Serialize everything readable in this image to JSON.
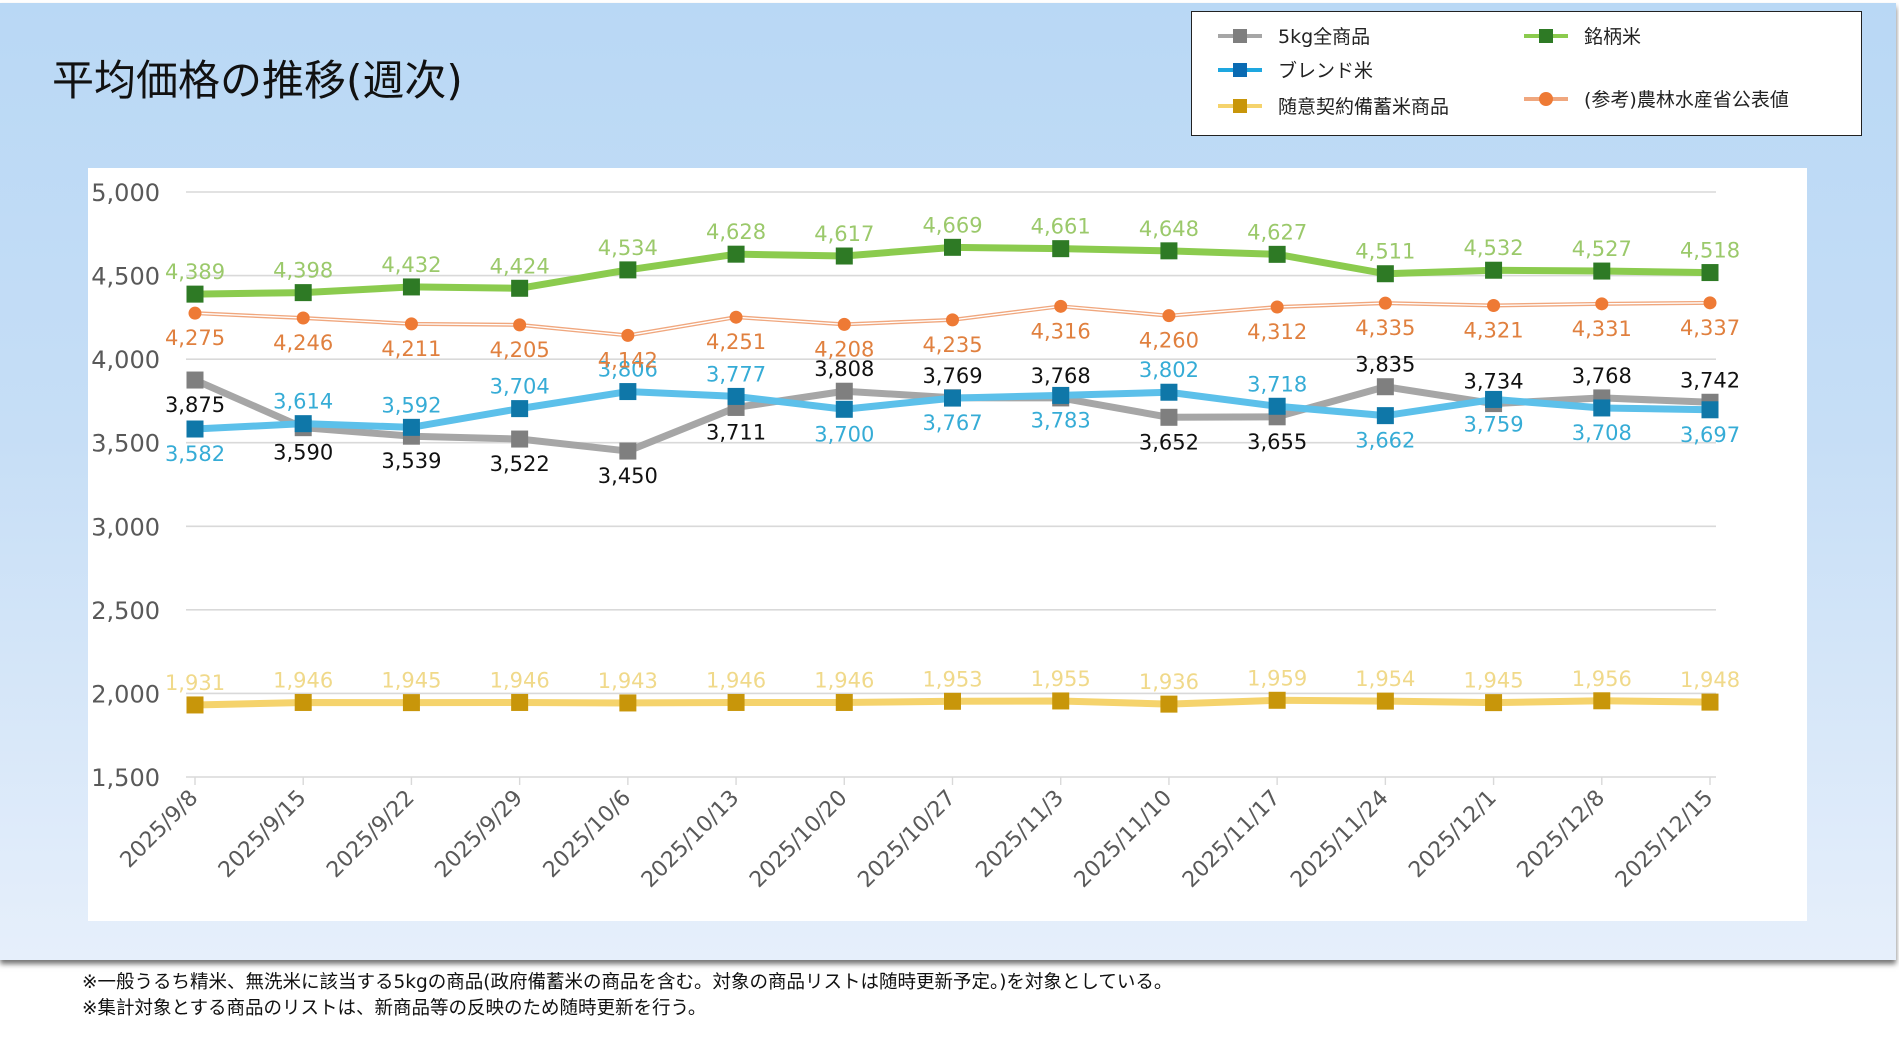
{
  "chart_data": {
    "type": "line",
    "title": "平均価格の推移(週次)",
    "xlabel": "",
    "ylabel": "",
    "ylim": [
      1500,
      5000
    ],
    "yticks": [
      1500,
      2000,
      2500,
      3000,
      3500,
      4000,
      4500,
      5000
    ],
    "ytick_labels": [
      "1,500",
      "2,000",
      "2,500",
      "3,000",
      "3,500",
      "4,000",
      "4,500",
      "5,000"
    ],
    "grid": true,
    "legend_position": "top-right",
    "categories": [
      "2025/9/8",
      "2025/9/15",
      "2025/9/22",
      "2025/9/29",
      "2025/10/6",
      "2025/10/13",
      "2025/10/20",
      "2025/10/27",
      "2025/11/3",
      "2025/11/10",
      "2025/11/17",
      "2025/11/24",
      "2025/12/1",
      "2025/12/8",
      "2025/12/15"
    ],
    "series": [
      {
        "name": "5kg全商品",
        "line_color": "#a6a6a6",
        "marker_color": "#7f7f7f",
        "label_color": "#111111",
        "marker": "square",
        "values": [
          3875,
          3590,
          3539,
          3522,
          3450,
          3711,
          3808,
          3769,
          3768,
          3652,
          3655,
          3835,
          3734,
          3768,
          3742
        ],
        "label_pos": [
          "below",
          "below",
          "below",
          "below",
          "below",
          "below",
          "above",
          "above",
          "above",
          "below",
          "below",
          "above",
          "above",
          "above",
          "above"
        ]
      },
      {
        "name": "銘柄米",
        "line_color": "#8bcb4e",
        "marker_color": "#2e7a25",
        "label_color": "#9bc96b",
        "marker": "square",
        "values": [
          4389,
          4398,
          4432,
          4424,
          4534,
          4628,
          4617,
          4669,
          4661,
          4648,
          4627,
          4511,
          4532,
          4527,
          4518
        ],
        "label_pos": [
          "above",
          "above",
          "above",
          "above",
          "above",
          "above",
          "above",
          "above",
          "above",
          "above",
          "above",
          "above",
          "above",
          "above",
          "above"
        ]
      },
      {
        "name": "ブレンド米",
        "line_color": "#5cc0ea",
        "marker_color": "#0f77a8",
        "label_color": "#36acd6",
        "marker": "square",
        "values": [
          3582,
          3614,
          3592,
          3704,
          3806,
          3777,
          3700,
          3767,
          3783,
          3802,
          3718,
          3662,
          3759,
          3708,
          3697
        ],
        "label_pos": [
          "below",
          "above",
          "above",
          "above",
          "above",
          "above",
          "below",
          "below",
          "below",
          "above",
          "above",
          "below",
          "below",
          "below",
          "below"
        ]
      },
      {
        "name": "(参考)農林水産省公表値",
        "line_color": "#f0a77e",
        "marker_color": "#ee7a35",
        "label_color": "#e0803f",
        "marker": "circle",
        "values": [
          4275,
          4246,
          4211,
          4205,
          4142,
          4251,
          4208,
          4235,
          4316,
          4260,
          4312,
          4335,
          4321,
          4331,
          4337
        ],
        "label_pos": [
          "below",
          "below",
          "below",
          "below",
          "below",
          "below",
          "below",
          "below",
          "below",
          "below",
          "below",
          "below",
          "below",
          "below",
          "below"
        ]
      },
      {
        "name": "随意契約備蓄米商品",
        "line_color": "#f5d36c",
        "marker_color": "#c8960a",
        "label_color": "#f0d98a",
        "marker": "square",
        "values": [
          1931,
          1946,
          1945,
          1946,
          1943,
          1946,
          1946,
          1953,
          1955,
          1936,
          1959,
          1954,
          1945,
          1956,
          1948
        ],
        "label_pos": [
          "above",
          "above",
          "above",
          "above",
          "above",
          "above",
          "above",
          "above",
          "above",
          "above",
          "above",
          "above",
          "above",
          "above",
          "above"
        ]
      }
    ]
  },
  "legend": {
    "items": [
      {
        "label": "5kg全商品",
        "series": 0
      },
      {
        "label": "銘柄米",
        "series": 1
      },
      {
        "label": "ブレンド米",
        "series": 2
      },
      {
        "label": "随意契約備蓄米商品",
        "series": 4
      },
      {
        "label": "(参考)農林水産省公表値",
        "series": 3
      }
    ]
  },
  "notes": [
    "※一般うるち精米、無洗米に該当する5kgの商品(政府備蓄米の商品を含む。対象の商品リストは随時更新予定。)を対象としている。",
    "※集計対象とする商品のリストは、新商品等の反映のため随時更新を行う。"
  ]
}
